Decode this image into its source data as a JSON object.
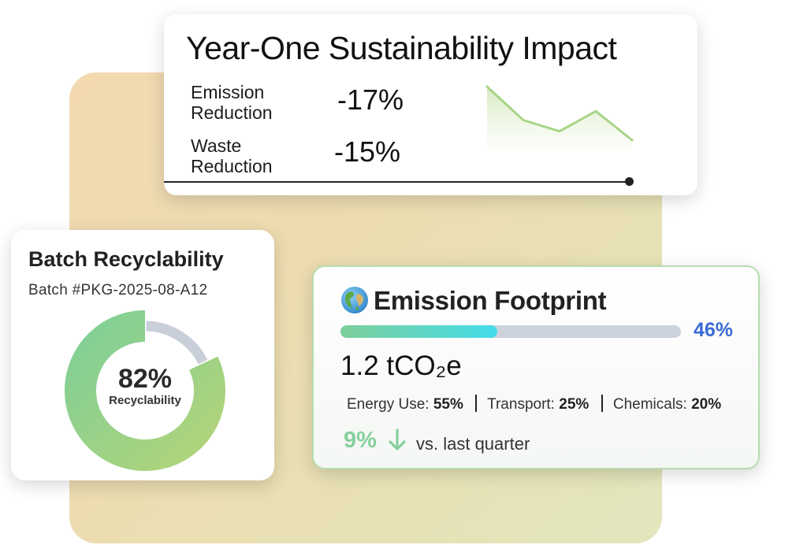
{
  "impact": {
    "title": "Year-One Sustainability Impact",
    "metrics": [
      {
        "label_line1": "Emission",
        "label_line2": "Reduction",
        "value": "-17%"
      },
      {
        "label_line1": "Waste",
        "label_line2": "Reduction",
        "value": "-15%"
      }
    ],
    "sparkline": [
      100,
      70,
      60,
      78,
      52
    ],
    "sparkline_color": "#a8d487"
  },
  "batch": {
    "title": "Batch Recyclability",
    "batch_id": "Batch #PKG-2025-08-A12",
    "percent": 82,
    "percent_text": "82%",
    "label": "Recyclability",
    "ring_color_start": "#80cf96",
    "ring_color_end": "#b2d47a",
    "track_color": "#c9cfd9"
  },
  "emission": {
    "icon": "globe-icon",
    "title": "Emission Footprint",
    "progress": 0.46,
    "progress_text": "46%",
    "value": "1.2 tCO₂e",
    "breakdown": [
      {
        "label": "Energy Use:",
        "value": "55%"
      },
      {
        "label": "Transport:",
        "value": "25%"
      },
      {
        "label": "Chemicals:",
        "value": "20%"
      }
    ],
    "change_value": "9%",
    "change_direction": "down",
    "change_text": "vs. last quarter",
    "accent_green": "#86d09e",
    "accent_blue": "#3a6ad8"
  }
}
